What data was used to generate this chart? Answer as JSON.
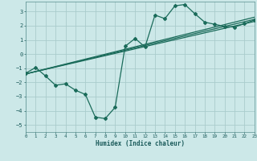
{
  "background_color": "#cce8e8",
  "grid_color": "#aacccc",
  "line_color": "#1a6b5a",
  "xlabel": "Humidex (Indice chaleur)",
  "xlim": [
    0,
    23
  ],
  "ylim": [
    -5.5,
    3.7
  ],
  "yticks": [
    -5,
    -4,
    -3,
    -2,
    -1,
    0,
    1,
    2,
    3
  ],
  "xticks": [
    0,
    1,
    2,
    3,
    4,
    5,
    6,
    7,
    8,
    9,
    10,
    11,
    12,
    13,
    14,
    15,
    16,
    17,
    18,
    19,
    20,
    21,
    22,
    23
  ],
  "curve1_x": [
    0,
    1,
    2,
    3,
    4,
    5,
    6,
    7,
    8,
    9,
    10,
    11,
    12,
    13,
    14,
    15,
    16,
    17,
    18,
    19,
    20,
    21,
    22,
    23
  ],
  "curve1_y": [
    -1.35,
    -0.95,
    -1.55,
    -2.2,
    -2.1,
    -2.55,
    -2.85,
    -4.45,
    -4.55,
    -3.75,
    0.55,
    1.1,
    0.5,
    2.75,
    2.5,
    3.4,
    3.5,
    2.85,
    2.25,
    2.1,
    1.95,
    1.9,
    2.15,
    2.4
  ],
  "line1_x": [
    0,
    23
  ],
  "line1_y": [
    -1.4,
    2.3
  ],
  "line2_x": [
    0,
    23
  ],
  "line2_y": [
    -1.4,
    2.45
  ],
  "line3_x": [
    0,
    23
  ],
  "line3_y": [
    -1.4,
    2.6
  ]
}
